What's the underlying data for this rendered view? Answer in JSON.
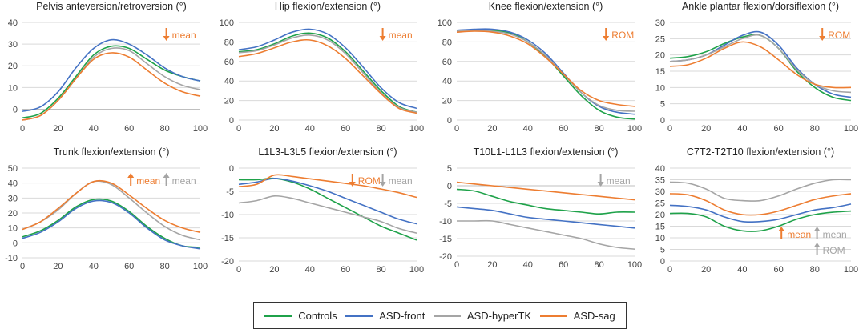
{
  "chart_data": [
    {
      "type": "line",
      "title": "Pelvis anteversion/retroversion (°)",
      "annotations": [
        {
          "arrow": "down",
          "text": "mean",
          "color": "#ED7D31"
        }
      ],
      "ylim": [
        -5,
        40
      ],
      "yticks": [
        0,
        10,
        20,
        30,
        40
      ],
      "xlim": [
        0,
        100
      ],
      "xticks": [
        0,
        20,
        40,
        60,
        80,
        100
      ],
      "x": [
        0,
        10,
        20,
        30,
        40,
        50,
        60,
        70,
        80,
        90,
        100
      ],
      "series": [
        {
          "name": "Controls",
          "values": [
            -4,
            -2,
            5,
            15,
            25,
            29,
            28,
            23,
            18,
            15,
            13
          ]
        },
        {
          "name": "ASD-front",
          "values": [
            -1,
            1,
            8,
            19,
            28,
            32,
            30,
            25,
            19,
            15,
            13
          ]
        },
        {
          "name": "ASD-hyperTK",
          "values": [
            -5,
            -3,
            4,
            14,
            24,
            28,
            27,
            21,
            15,
            11,
            9
          ]
        },
        {
          "name": "ASD-sag",
          "values": [
            -5,
            -3,
            4,
            14,
            23,
            26,
            24,
            18,
            12,
            8,
            6
          ]
        }
      ]
    },
    {
      "type": "line",
      "title": "Hip flexion/extension (°)",
      "annotations": [
        {
          "arrow": "down",
          "text": "mean",
          "color": "#ED7D31"
        }
      ],
      "ylim": [
        0,
        100
      ],
      "yticks": [
        0,
        20,
        40,
        60,
        80,
        100
      ],
      "xlim": [
        0,
        100
      ],
      "xticks": [
        0,
        20,
        40,
        60,
        80,
        100
      ],
      "x": [
        0,
        10,
        20,
        30,
        40,
        50,
        60,
        70,
        80,
        90,
        100
      ],
      "series": [
        {
          "name": "Controls",
          "values": [
            70,
            72,
            78,
            86,
            89,
            84,
            70,
            50,
            30,
            14,
            8
          ]
        },
        {
          "name": "ASD-front",
          "values": [
            72,
            75,
            82,
            90,
            93,
            88,
            74,
            54,
            33,
            18,
            12
          ]
        },
        {
          "name": "ASD-hyperTK",
          "values": [
            69,
            71,
            77,
            84,
            87,
            82,
            68,
            48,
            28,
            13,
            8
          ]
        },
        {
          "name": "ASD-sag",
          "values": [
            65,
            68,
            74,
            80,
            82,
            76,
            63,
            45,
            27,
            12,
            7
          ]
        }
      ]
    },
    {
      "type": "line",
      "title": "Knee flexion/extension (°)",
      "annotations": [
        {
          "arrow": "down",
          "text": "ROM",
          "color": "#ED7D31"
        }
      ],
      "ylim": [
        0,
        100
      ],
      "yticks": [
        0,
        20,
        40,
        60,
        80,
        100
      ],
      "xlim": [
        0,
        100
      ],
      "xticks": [
        0,
        20,
        40,
        60,
        80,
        100
      ],
      "x": [
        0,
        10,
        20,
        30,
        40,
        50,
        60,
        70,
        80,
        90,
        100
      ],
      "series": [
        {
          "name": "Controls",
          "values": [
            92,
            92,
            92,
            89,
            80,
            65,
            45,
            25,
            10,
            3,
            1
          ]
        },
        {
          "name": "ASD-front",
          "values": [
            92,
            93,
            93,
            90,
            82,
            68,
            48,
            28,
            14,
            8,
            6
          ]
        },
        {
          "name": "ASD-hyperTK",
          "values": [
            91,
            92,
            91,
            88,
            80,
            66,
            47,
            28,
            15,
            10,
            9
          ]
        },
        {
          "name": "ASD-sag",
          "values": [
            90,
            91,
            90,
            86,
            78,
            64,
            47,
            30,
            20,
            16,
            14
          ]
        }
      ]
    },
    {
      "type": "line",
      "title": "Ankle plantar flexion/dorsiflexion (°)",
      "annotations": [
        {
          "arrow": "down",
          "text": "ROM",
          "color": "#ED7D31"
        }
      ],
      "ylim": [
        0,
        30
      ],
      "yticks": [
        0,
        5,
        10,
        15,
        20,
        25,
        30
      ],
      "xlim": [
        0,
        100
      ],
      "xticks": [
        0,
        20,
        40,
        60,
        80,
        100
      ],
      "x": [
        0,
        10,
        20,
        30,
        40,
        50,
        60,
        70,
        80,
        90,
        100
      ],
      "series": [
        {
          "name": "Controls",
          "values": [
            19,
            19.5,
            21,
            23.5,
            25.5,
            26,
            22,
            15,
            10,
            7,
            6
          ]
        },
        {
          "name": "ASD-front",
          "values": [
            18,
            18.5,
            20,
            23,
            26,
            27,
            23,
            16,
            11,
            8,
            7
          ]
        },
        {
          "name": "ASD-hyperTK",
          "values": [
            18,
            18.5,
            20,
            22.5,
            25,
            26,
            22,
            15.5,
            11,
            9,
            8.5
          ]
        },
        {
          "name": "ASD-sag",
          "values": [
            16.5,
            17,
            19,
            22,
            24,
            22.5,
            18.5,
            14,
            11,
            10,
            10
          ]
        }
      ]
    },
    {
      "type": "line",
      "title": "Trunk flexion/extension (°)",
      "annotations": [
        {
          "arrow": "up",
          "text": "mean",
          "color": "#ED7D31"
        },
        {
          "arrow": "up",
          "text": "mean",
          "color": "#A5A5A5"
        }
      ],
      "ylim": [
        -10,
        50
      ],
      "yticks": [
        -10,
        0,
        10,
        20,
        30,
        40,
        50
      ],
      "xlim": [
        0,
        100
      ],
      "xticks": [
        0,
        20,
        40,
        60,
        80,
        100
      ],
      "x": [
        0,
        10,
        20,
        30,
        40,
        50,
        60,
        70,
        80,
        90,
        100
      ],
      "series": [
        {
          "name": "Controls",
          "values": [
            4,
            8,
            15,
            24,
            29,
            28,
            21,
            11,
            3,
            -2,
            -3
          ]
        },
        {
          "name": "ASD-front",
          "values": [
            3,
            7,
            14,
            23,
            28,
            27,
            20,
            10,
            2,
            -2,
            -4
          ]
        },
        {
          "name": "ASD-hyperTK",
          "values": [
            9,
            14,
            22,
            33,
            41,
            39,
            30,
            20,
            11,
            5,
            2
          ]
        },
        {
          "name": "ASD-sag",
          "values": [
            9,
            14,
            23,
            33,
            41,
            40,
            32,
            23,
            15,
            10,
            7
          ]
        }
      ]
    },
    {
      "type": "line",
      "title": "L1L3-L3L5 flexion/extension (°)",
      "annotations": [
        {
          "arrow": "down",
          "text": "ROM",
          "color": "#ED7D31"
        },
        {
          "arrow": "down",
          "text": "mean",
          "color": "#A5A5A5"
        }
      ],
      "ylim": [
        -20,
        0
      ],
      "yticks": [
        -20,
        -15,
        -10,
        -5,
        0
      ],
      "xlim": [
        0,
        100
      ],
      "xticks": [
        0,
        20,
        40,
        60,
        80,
        100
      ],
      "x": [
        0,
        10,
        20,
        30,
        40,
        50,
        60,
        70,
        80,
        90,
        100
      ],
      "series": [
        {
          "name": "Controls",
          "values": [
            -2.5,
            -2.5,
            -2.2,
            -3,
            -4.5,
            -6.5,
            -8.5,
            -10.5,
            -12.5,
            -14,
            -15.5
          ]
        },
        {
          "name": "ASD-front",
          "values": [
            -3.5,
            -3,
            -2.2,
            -2.8,
            -3.8,
            -5,
            -6.5,
            -8,
            -9.5,
            -11,
            -12
          ]
        },
        {
          "name": "ASD-hyperTK",
          "values": [
            -7.5,
            -7,
            -6,
            -6.5,
            -7.5,
            -8.5,
            -9.5,
            -10.5,
            -11.5,
            -13,
            -14
          ]
        },
        {
          "name": "ASD-sag",
          "values": [
            -4,
            -3.5,
            -1.5,
            -1.8,
            -2.3,
            -2.8,
            -3.3,
            -3.8,
            -4.5,
            -5.3,
            -6.3
          ]
        }
      ]
    },
    {
      "type": "line",
      "title": "T10L1-L1L3 flexion/extension (°)",
      "annotations": [
        {
          "arrow": "down",
          "text": "mean",
          "color": "#A5A5A5"
        }
      ],
      "ylim": [
        -20,
        5
      ],
      "yticks": [
        -20,
        -15,
        -10,
        -5,
        0,
        5
      ],
      "xlim": [
        0,
        100
      ],
      "xticks": [
        0,
        20,
        40,
        60,
        80,
        100
      ],
      "x": [
        0,
        10,
        20,
        30,
        40,
        50,
        60,
        70,
        80,
        90,
        100
      ],
      "series": [
        {
          "name": "Controls",
          "values": [
            -1,
            -1.5,
            -3,
            -4.5,
            -5.5,
            -6.5,
            -7,
            -7.5,
            -8,
            -7.5,
            -7.5
          ]
        },
        {
          "name": "ASD-front",
          "values": [
            -6,
            -6.5,
            -7,
            -8,
            -9,
            -9.5,
            -10,
            -10.5,
            -11,
            -11.5,
            -12
          ]
        },
        {
          "name": "ASD-hyperTK",
          "values": [
            -10,
            -10,
            -10,
            -11,
            -12,
            -13,
            -14,
            -15,
            -16.5,
            -17.5,
            -18
          ]
        },
        {
          "name": "ASD-sag",
          "values": [
            1,
            0.5,
            0,
            -0.5,
            -1,
            -1.5,
            -2,
            -2.5,
            -3,
            -3.5,
            -4
          ]
        }
      ]
    },
    {
      "type": "line",
      "title": "C7T2-T2T10 flexion/extension (°)",
      "annotations": [
        {
          "arrow": "up",
          "text": "mean",
          "color": "#ED7D31"
        },
        {
          "arrow": "up",
          "text": "mean",
          "color": "#A5A5A5"
        },
        {
          "arrow": "up",
          "text": "ROM",
          "color": "#A5A5A5"
        }
      ],
      "ylim": [
        0,
        40
      ],
      "yticks": [
        0,
        5,
        10,
        15,
        20,
        25,
        30,
        35,
        40
      ],
      "xlim": [
        0,
        100
      ],
      "xticks": [
        0,
        20,
        40,
        60,
        80,
        100
      ],
      "x": [
        0,
        10,
        20,
        30,
        40,
        50,
        60,
        70,
        80,
        90,
        100
      ],
      "series": [
        {
          "name": "Controls",
          "values": [
            20.5,
            20.5,
            19,
            15,
            13,
            13,
            15,
            18,
            20,
            21,
            21.5
          ]
        },
        {
          "name": "ASD-front",
          "values": [
            24,
            23.5,
            22,
            19,
            17,
            17,
            18,
            20,
            22,
            23,
            24.5
          ]
        },
        {
          "name": "ASD-hyperTK",
          "values": [
            34,
            33.5,
            31,
            27,
            26,
            26,
            28,
            31,
            33.5,
            35,
            35
          ]
        },
        {
          "name": "ASD-sag",
          "values": [
            29,
            28.5,
            26,
            22,
            20,
            20,
            21.5,
            24,
            26.5,
            28,
            29
          ]
        }
      ]
    }
  ],
  "series_colors": {
    "Controls": "#1FA24A",
    "ASD-front": "#4472C4",
    "ASD-hyperTK": "#A5A5A5",
    "ASD-sag": "#ED7D31"
  },
  "legend": {
    "items": [
      {
        "label": "Controls",
        "color": "#1FA24A"
      },
      {
        "label": "ASD-front",
        "color": "#4472C4"
      },
      {
        "label": "ASD-hyperTK",
        "color": "#A5A5A5"
      },
      {
        "label": "ASD-sag",
        "color": "#ED7D31"
      }
    ]
  }
}
